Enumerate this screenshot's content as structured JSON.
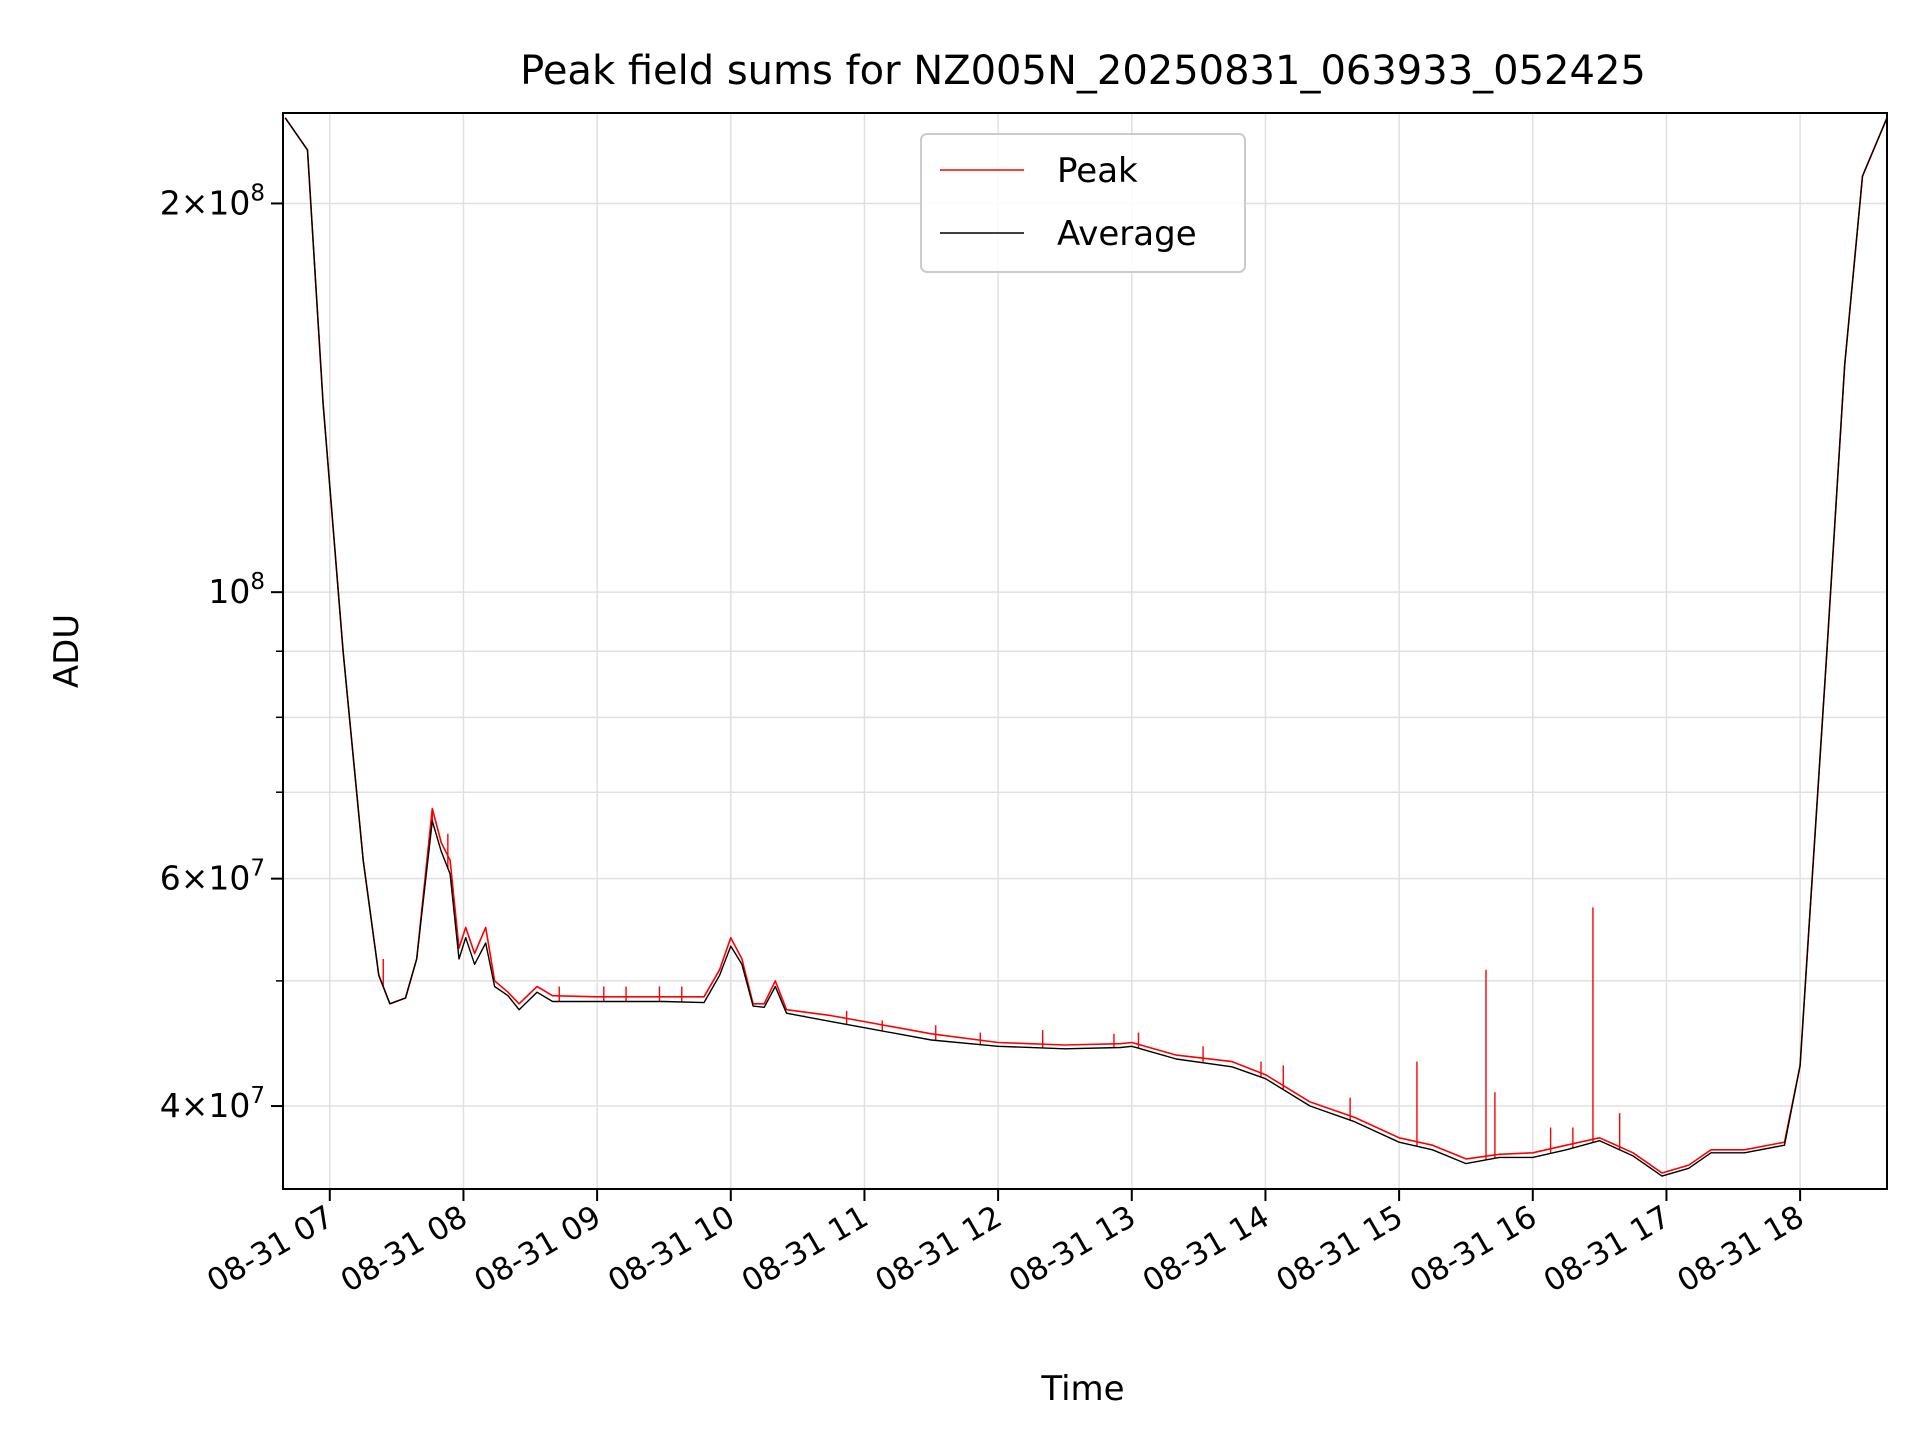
{
  "chart_data": {
    "type": "line",
    "title": "Peak field sums for NZ005N_20250831_063933_052425",
    "xlabel": "Time",
    "ylabel": "ADU",
    "yscale": "log",
    "grid": true,
    "legend_position": "upper center",
    "x_tick_labels": [
      "08-31 07",
      "08-31 08",
      "08-31 09",
      "08-31 10",
      "08-31 11",
      "08-31 12",
      "08-31 13",
      "08-31 14",
      "08-31 15",
      "08-31 16",
      "08-31 17",
      "08-31 18"
    ],
    "xlim": [
      "2025-08-31 06:39",
      "2025-08-31 18:39"
    ],
    "ylim": [
      34500000,
      235000000
    ],
    "y_major_ticks": [
      {
        "value": 40000000,
        "mantissa": "4",
        "exponent": "7"
      },
      {
        "value": 60000000,
        "mantissa": "6",
        "exponent": "7"
      },
      {
        "value": 100000000,
        "mantissa": "",
        "exponent": "8"
      },
      {
        "value": 200000000,
        "mantissa": "2",
        "exponent": "8"
      }
    ],
    "y_minor_ticks": [
      50000000,
      70000000,
      80000000,
      90000000
    ],
    "series": [
      {
        "name": "Peak",
        "color": "#ff0000",
        "points": [
          [
            "2025-08-31 06:40",
            233000000
          ],
          [
            "2025-08-31 06:50",
            220000000
          ],
          [
            "2025-08-31 06:57",
            140000000
          ],
          [
            "2025-08-31 07:06",
            90000000
          ],
          [
            "2025-08-31 07:15",
            62000000
          ],
          [
            "2025-08-31 07:22",
            50500000
          ],
          [
            "2025-08-31 07:27",
            48000000
          ],
          [
            "2025-08-31 07:34",
            48500000
          ],
          [
            "2025-08-31 07:39",
            52000000
          ],
          [
            "2025-08-31 07:46",
            68000000
          ],
          [
            "2025-08-31 07:50",
            64000000
          ],
          [
            "2025-08-31 07:54",
            62000000
          ],
          [
            "2025-08-31 07:58",
            53000000
          ],
          [
            "2025-08-31 08:01",
            55000000
          ],
          [
            "2025-08-31 08:05",
            52500000
          ],
          [
            "2025-08-31 08:10",
            55000000
          ],
          [
            "2025-08-31 08:14",
            50000000
          ],
          [
            "2025-08-31 08:20",
            49000000
          ],
          [
            "2025-08-31 08:25",
            48000000
          ],
          [
            "2025-08-31 08:33",
            49500000
          ],
          [
            "2025-08-31 08:40",
            48700000
          ],
          [
            "2025-08-31 09:00",
            48600000
          ],
          [
            "2025-08-31 09:30",
            48600000
          ],
          [
            "2025-08-31 09:48",
            48600000
          ],
          [
            "2025-08-31 09:55",
            51000000
          ],
          [
            "2025-08-31 10:00",
            54000000
          ],
          [
            "2025-08-31 10:05",
            52000000
          ],
          [
            "2025-08-31 10:10",
            48000000
          ],
          [
            "2025-08-31 10:15",
            48000000
          ],
          [
            "2025-08-31 10:20",
            50000000
          ],
          [
            "2025-08-31 10:25",
            47500000
          ],
          [
            "2025-08-31 10:45",
            47000000
          ],
          [
            "2025-08-31 11:00",
            46500000
          ],
          [
            "2025-08-31 11:30",
            45500000
          ],
          [
            "2025-08-31 12:00",
            44800000
          ],
          [
            "2025-08-31 12:30",
            44600000
          ],
          [
            "2025-08-31 12:55",
            44700000
          ],
          [
            "2025-08-31 13:00",
            44800000
          ],
          [
            "2025-08-31 13:20",
            43800000
          ],
          [
            "2025-08-31 13:45",
            43300000
          ],
          [
            "2025-08-31 14:00",
            42300000
          ],
          [
            "2025-08-31 14:20",
            40300000
          ],
          [
            "2025-08-31 14:40",
            39200000
          ],
          [
            "2025-08-31 15:00",
            37800000
          ],
          [
            "2025-08-31 15:15",
            37300000
          ],
          [
            "2025-08-31 15:30",
            36400000
          ],
          [
            "2025-08-31 15:45",
            36700000
          ],
          [
            "2025-08-31 16:00",
            36800000
          ],
          [
            "2025-08-31 16:15",
            37300000
          ],
          [
            "2025-08-31 16:30",
            37800000
          ],
          [
            "2025-08-31 16:45",
            36800000
          ],
          [
            "2025-08-31 16:58",
            35500000
          ],
          [
            "2025-08-31 17:10",
            36000000
          ],
          [
            "2025-08-31 17:20",
            37000000
          ],
          [
            "2025-08-31 17:35",
            37000000
          ],
          [
            "2025-08-31 17:53",
            37500000
          ],
          [
            "2025-08-31 18:00",
            43000000
          ],
          [
            "2025-08-31 18:04",
            55000000
          ],
          [
            "2025-08-31 18:12",
            90000000
          ],
          [
            "2025-08-31 18:20",
            150000000
          ],
          [
            "2025-08-31 18:28",
            210000000
          ],
          [
            "2025-08-31 18:39",
            233000000
          ]
        ],
        "spikes": [
          [
            "2025-08-31 07:24",
            52000000
          ],
          [
            "2025-08-31 07:46",
            68000000
          ],
          [
            "2025-08-31 07:53",
            65000000
          ],
          [
            "2025-08-31 08:43",
            49500000
          ],
          [
            "2025-08-31 09:03",
            49500000
          ],
          [
            "2025-08-31 09:13",
            49500000
          ],
          [
            "2025-08-31 09:28",
            49500000
          ],
          [
            "2025-08-31 09:38",
            49500000
          ],
          [
            "2025-08-31 10:33",
            47000000
          ],
          [
            "2025-08-31 10:52",
            47400000
          ],
          [
            "2025-08-31 11:08",
            46600000
          ],
          [
            "2025-08-31 11:32",
            46200000
          ],
          [
            "2025-08-31 11:52",
            45600000
          ],
          [
            "2025-08-31 12:20",
            45800000
          ],
          [
            "2025-08-31 12:52",
            45500000
          ],
          [
            "2025-08-31 13:03",
            45600000
          ],
          [
            "2025-08-31 13:32",
            44500000
          ],
          [
            "2025-08-31 13:58",
            43300000
          ],
          [
            "2025-08-31 14:08",
            43000000
          ],
          [
            "2025-08-31 14:38",
            40600000
          ],
          [
            "2025-08-31 15:08",
            43300000
          ],
          [
            "2025-08-31 15:39",
            51000000
          ],
          [
            "2025-08-31 15:43",
            41000000
          ],
          [
            "2025-08-31 16:08",
            38500000
          ],
          [
            "2025-08-31 16:18",
            38500000
          ],
          [
            "2025-08-31 16:27",
            57000000
          ],
          [
            "2025-08-31 16:39",
            39500000
          ]
        ]
      },
      {
        "name": "Average",
        "color": "#000000",
        "points": [
          [
            "2025-08-31 06:40",
            233000000
          ],
          [
            "2025-08-31 06:50",
            220000000
          ],
          [
            "2025-08-31 06:57",
            140000000
          ],
          [
            "2025-08-31 07:06",
            90000000
          ],
          [
            "2025-08-31 07:15",
            62000000
          ],
          [
            "2025-08-31 07:22",
            50500000
          ],
          [
            "2025-08-31 07:27",
            48000000
          ],
          [
            "2025-08-31 07:34",
            48500000
          ],
          [
            "2025-08-31 07:39",
            52000000
          ],
          [
            "2025-08-31 07:46",
            66500000
          ],
          [
            "2025-08-31 07:50",
            63000000
          ],
          [
            "2025-08-31 07:54",
            60500000
          ],
          [
            "2025-08-31 07:58",
            52000000
          ],
          [
            "2025-08-31 08:01",
            54000000
          ],
          [
            "2025-08-31 08:05",
            51500000
          ],
          [
            "2025-08-31 08:10",
            53500000
          ],
          [
            "2025-08-31 08:14",
            49500000
          ],
          [
            "2025-08-31 08:20",
            48700000
          ],
          [
            "2025-08-31 08:25",
            47500000
          ],
          [
            "2025-08-31 08:33",
            49000000
          ],
          [
            "2025-08-31 08:40",
            48200000
          ],
          [
            "2025-08-31 09:00",
            48200000
          ],
          [
            "2025-08-31 09:30",
            48200000
          ],
          [
            "2025-08-31 09:48",
            48100000
          ],
          [
            "2025-08-31 09:55",
            50500000
          ],
          [
            "2025-08-31 10:00",
            53200000
          ],
          [
            "2025-08-31 10:05",
            51500000
          ],
          [
            "2025-08-31 10:10",
            47800000
          ],
          [
            "2025-08-31 10:15",
            47700000
          ],
          [
            "2025-08-31 10:20",
            49500000
          ],
          [
            "2025-08-31 10:25",
            47200000
          ],
          [
            "2025-08-31 10:45",
            46500000
          ],
          [
            "2025-08-31 11:00",
            46000000
          ],
          [
            "2025-08-31 11:30",
            45000000
          ],
          [
            "2025-08-31 12:00",
            44500000
          ],
          [
            "2025-08-31 12:30",
            44300000
          ],
          [
            "2025-08-31 12:55",
            44400000
          ],
          [
            "2025-08-31 13:00",
            44500000
          ],
          [
            "2025-08-31 13:20",
            43500000
          ],
          [
            "2025-08-31 13:45",
            42900000
          ],
          [
            "2025-08-31 14:00",
            42000000
          ],
          [
            "2025-08-31 14:20",
            40000000
          ],
          [
            "2025-08-31 14:40",
            38900000
          ],
          [
            "2025-08-31 15:00",
            37500000
          ],
          [
            "2025-08-31 15:15",
            37000000
          ],
          [
            "2025-08-31 15:30",
            36100000
          ],
          [
            "2025-08-31 15:45",
            36500000
          ],
          [
            "2025-08-31 16:00",
            36500000
          ],
          [
            "2025-08-31 16:15",
            37000000
          ],
          [
            "2025-08-31 16:30",
            37600000
          ],
          [
            "2025-08-31 16:45",
            36600000
          ],
          [
            "2025-08-31 16:58",
            35300000
          ],
          [
            "2025-08-31 17:10",
            35800000
          ],
          [
            "2025-08-31 17:20",
            36800000
          ],
          [
            "2025-08-31 17:35",
            36800000
          ],
          [
            "2025-08-31 17:53",
            37300000
          ],
          [
            "2025-08-31 18:00",
            43000000
          ],
          [
            "2025-08-31 18:04",
            55000000
          ],
          [
            "2025-08-31 18:12",
            90000000
          ],
          [
            "2025-08-31 18:20",
            150000000
          ],
          [
            "2025-08-31 18:28",
            210000000
          ],
          [
            "2025-08-31 18:39",
            233000000
          ]
        ]
      }
    ]
  }
}
